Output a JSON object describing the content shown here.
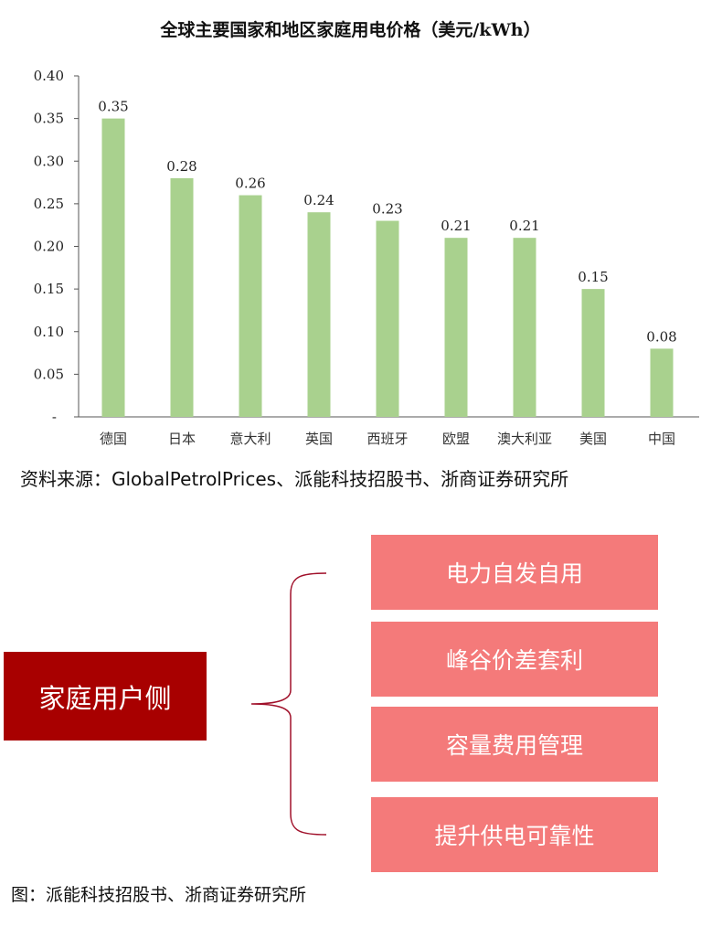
{
  "chart_data": {
    "type": "bar",
    "title": "全球主要国家和地区家庭用电价格（美元/kWh）",
    "categories": [
      "德国",
      "日本",
      "意大利",
      "英国",
      "西班牙",
      "欧盟",
      "澳大利亚",
      "美国",
      "中国"
    ],
    "values": [
      0.35,
      0.28,
      0.26,
      0.24,
      0.23,
      0.21,
      0.21,
      0.15,
      0.08
    ],
    "data_labels": [
      "0.35",
      "0.28",
      "0.26",
      "0.24",
      "0.23",
      "0.21",
      "0.21",
      "0.15",
      "0.08"
    ],
    "ylim": [
      0,
      0.4
    ],
    "yticks": [
      "-",
      "0.05",
      "0.10",
      "0.15",
      "0.20",
      "0.25",
      "0.30",
      "0.35",
      "0.40"
    ],
    "grid": false,
    "bar_color": "#a9d18e",
    "xlabel": "",
    "ylabel": ""
  },
  "chart_source": "资料来源：GlobalPetrolPrices、派能科技招股书、浙商证券研究所",
  "diagram": {
    "main": "家庭用户侧",
    "items": [
      "电力自发自用",
      "峰谷价差套利",
      "容量费用管理",
      "提升供电可靠性"
    ],
    "main_color": "#a80000",
    "item_color": "#f47a7a",
    "caption": "图：派能科技招股书、浙商证券研究所"
  }
}
